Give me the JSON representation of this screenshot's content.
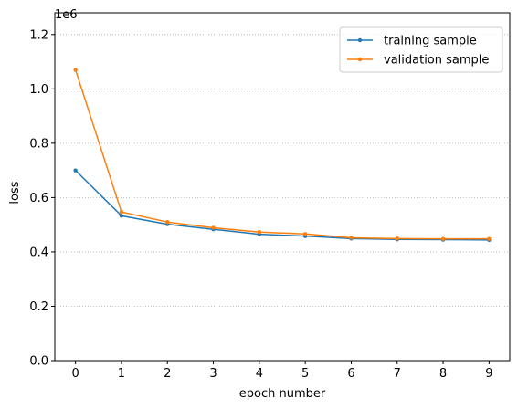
{
  "chart_data": {
    "type": "line",
    "xlabel": "epoch number",
    "ylabel": "loss",
    "y_multiplier_label": "1e6",
    "x": [
      0,
      1,
      2,
      3,
      4,
      5,
      6,
      7,
      8,
      9
    ],
    "x_ticks": [
      "0",
      "1",
      "2",
      "3",
      "4",
      "5",
      "6",
      "7",
      "8",
      "9"
    ],
    "y_ticks": [
      0.0,
      0.2,
      0.4,
      0.6,
      0.8,
      1.0,
      1.2
    ],
    "y_tick_labels": [
      "0.0",
      "0.2",
      "0.4",
      "0.6",
      "0.8",
      "1.0",
      "1.2"
    ],
    "xlim": [
      -0.45,
      9.45
    ],
    "ylim": [
      0,
      1.28
    ],
    "grid": "horizontal dotted",
    "legend_position": "top-right",
    "series": [
      {
        "name": "training sample",
        "color": "#1f77b4",
        "values": [
          0.7,
          0.533,
          0.502,
          0.483,
          0.465,
          0.458,
          0.449,
          0.446,
          0.445,
          0.444
        ]
      },
      {
        "name": "validation sample",
        "color": "#ff7f0e",
        "values": [
          1.07,
          0.547,
          0.51,
          0.489,
          0.473,
          0.466,
          0.452,
          0.449,
          0.448,
          0.448
        ]
      }
    ]
  }
}
